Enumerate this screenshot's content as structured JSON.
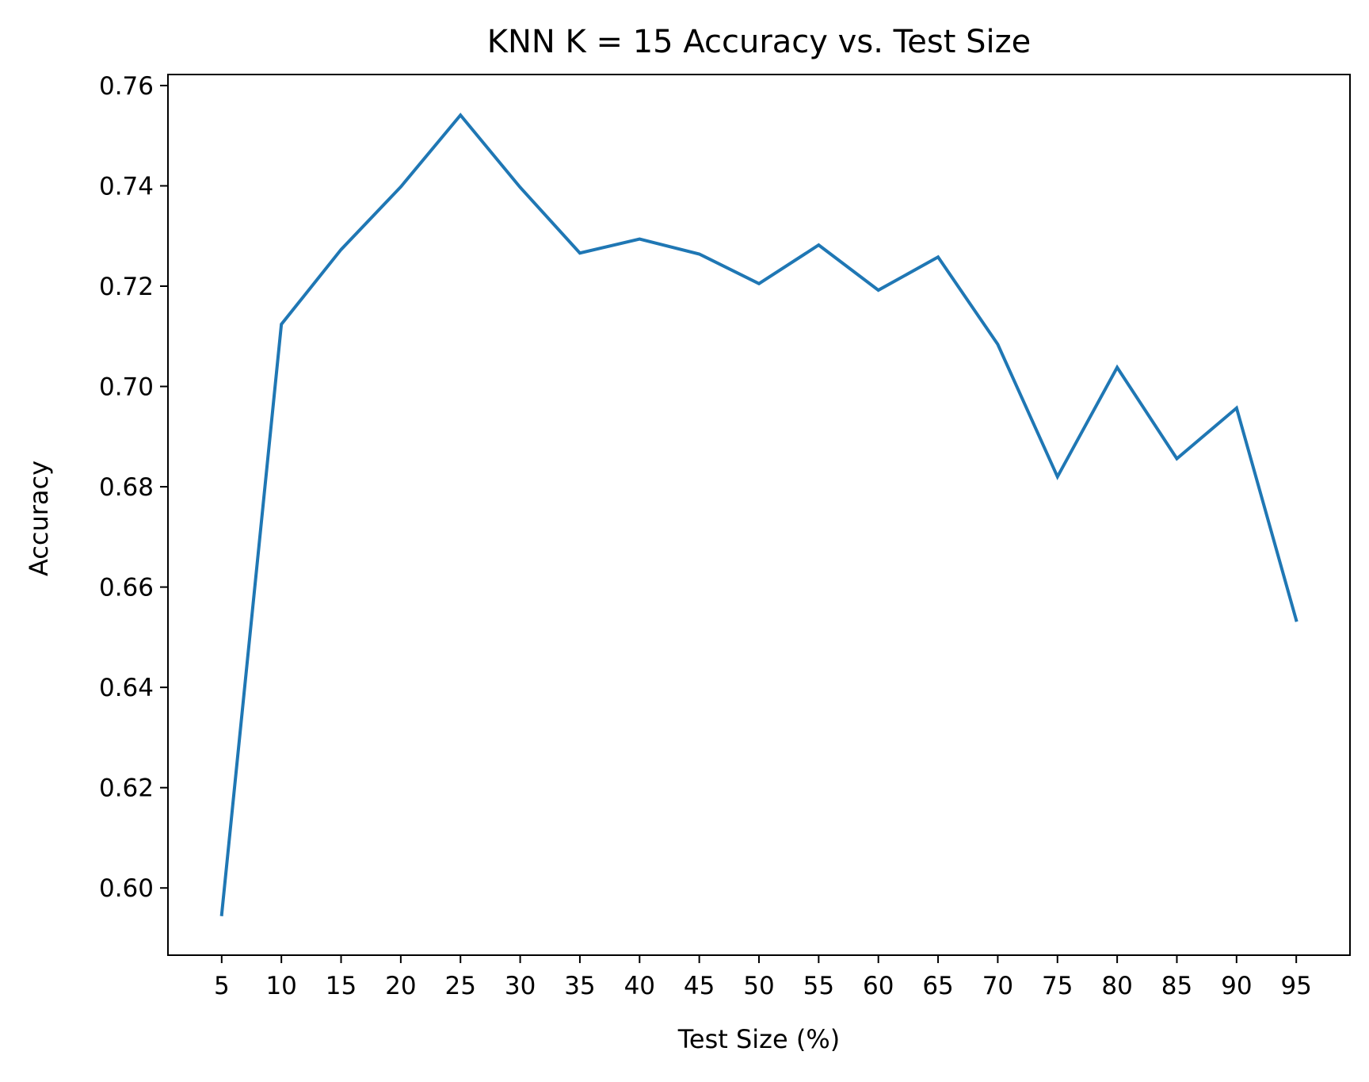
{
  "chart_data": {
    "type": "line",
    "title": "KNN K = 15 Accuracy vs. Test Size",
    "xlabel": "Test Size (%)",
    "ylabel": "Accuracy",
    "x": [
      5,
      10,
      15,
      20,
      25,
      30,
      35,
      40,
      45,
      50,
      55,
      60,
      65,
      70,
      75,
      80,
      85,
      90,
      95
    ],
    "series": [
      {
        "values": [
          0.5947,
          0.7124,
          0.7273,
          0.7398,
          0.7541,
          0.7397,
          0.7266,
          0.7294,
          0.7264,
          0.7205,
          0.7282,
          0.7192,
          0.7258,
          0.7084,
          0.682,
          0.7038,
          0.6856,
          0.6957,
          0.6534
        ],
        "color": "#1f77b4"
      }
    ],
    "xticks": [
      "5",
      "10",
      "15",
      "20",
      "25",
      "30",
      "35",
      "40",
      "45",
      "50",
      "55",
      "60",
      "65",
      "70",
      "75",
      "80",
      "85",
      "90",
      "95"
    ],
    "yticks": [
      "0.60",
      "0.62",
      "0.64",
      "0.66",
      "0.68",
      "0.70",
      "0.72",
      "0.74",
      "0.76"
    ],
    "xlim": [
      0.5,
      99.5
    ],
    "ylim": [
      0.5866,
      0.7622
    ],
    "grid": false,
    "legend": "none"
  }
}
